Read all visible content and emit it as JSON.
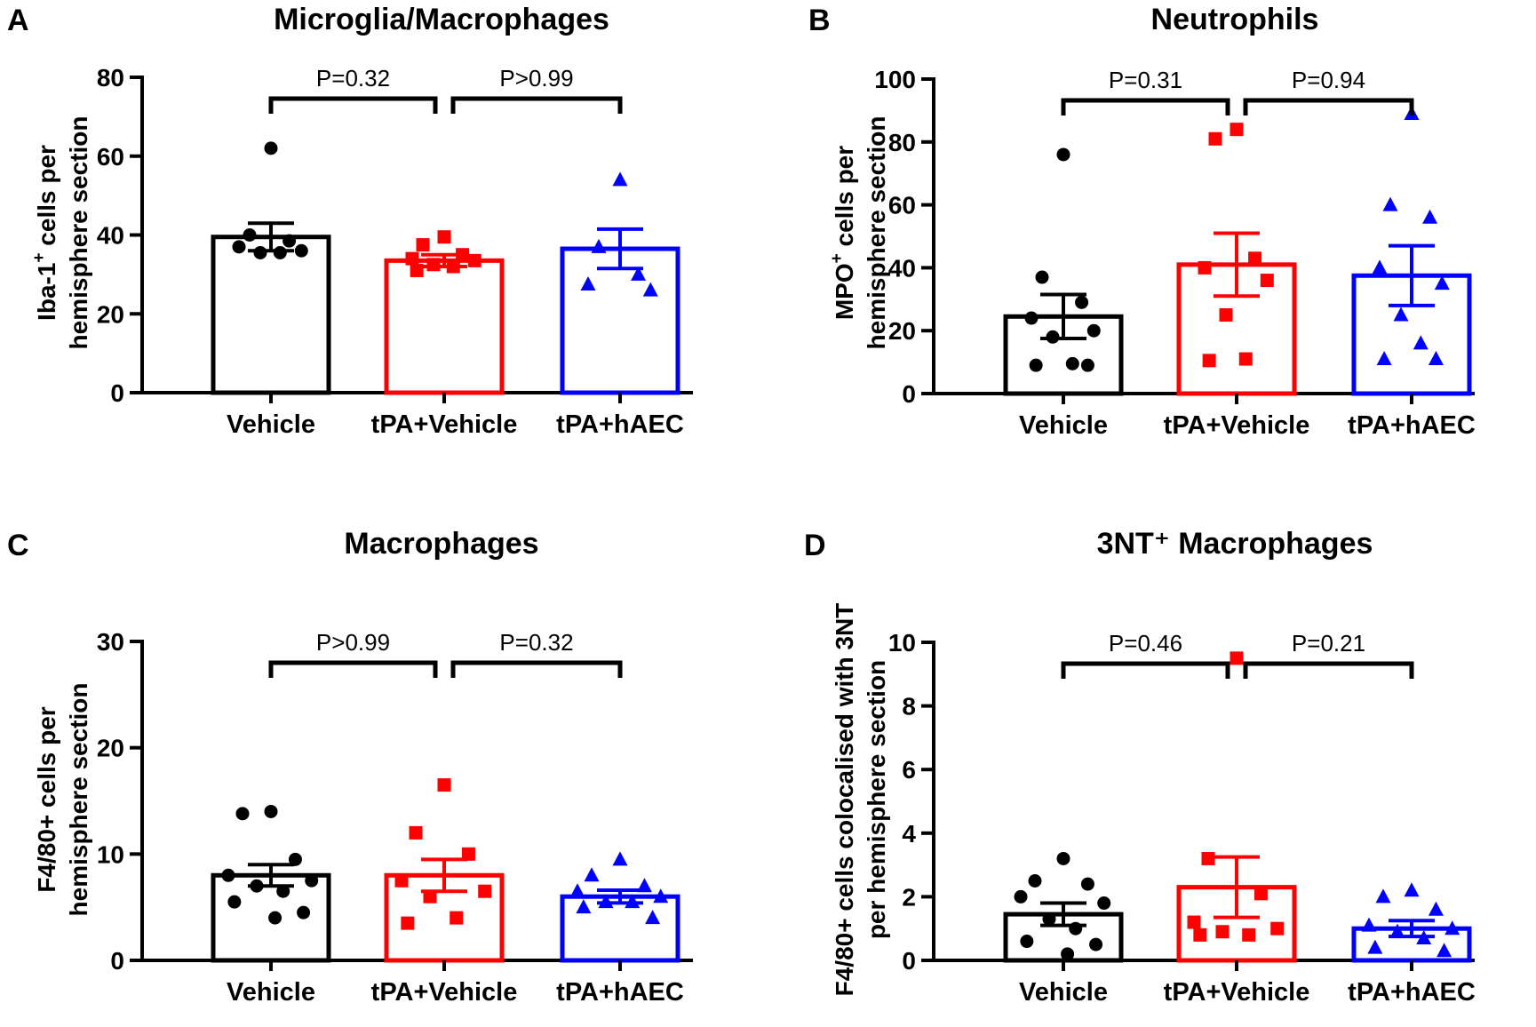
{
  "figure": {
    "colors": {
      "Vehicle": "#000000",
      "tPA+Vehicle": "#ff0000",
      "tPA+hAEC": "#0000ff"
    },
    "markers": {
      "Vehicle": "circle",
      "tPA+Vehicle": "square",
      "tPA+hAEC": "triangle"
    }
  },
  "chart_data": [
    {
      "panel": "A",
      "type": "bar",
      "title": "Microglia/Macrophages",
      "ylabel_lines": [
        [
          {
            "t": "Iba-1"
          },
          {
            "t": "+",
            "sup": true
          },
          {
            "t": " cells per"
          }
        ],
        [
          {
            "t": "hemisphere section"
          }
        ]
      ],
      "categories": [
        "Vehicle",
        "tPA+Vehicle",
        "tPA+hAEC"
      ],
      "values": [
        39.5,
        33.5,
        36.5
      ],
      "sem": [
        3.5,
        1.5,
        5
      ],
      "ylim": [
        0,
        80
      ],
      "yticks": [
        "0",
        "20",
        "40",
        "60",
        "80"
      ],
      "points": [
        [
          62,
          40,
          38.5,
          37,
          36,
          35.5,
          35.5
        ],
        [
          39.5,
          37.5,
          35,
          34,
          33.5,
          32.5,
          32,
          31
        ],
        [
          54,
          37,
          30,
          27.5,
          26
        ]
      ],
      "comparisons": [
        {
          "from": 0,
          "to": 1,
          "label": "P=0.32"
        },
        {
          "from": 1,
          "to": 2,
          "label": "P>0.99"
        }
      ]
    },
    {
      "panel": "B",
      "type": "bar",
      "title": "Neutrophils",
      "ylabel_lines": [
        [
          {
            "t": "MPO"
          },
          {
            "t": "+",
            "sup": true
          },
          {
            "t": " cells per"
          }
        ],
        [
          {
            "t": "hemisphere section"
          }
        ]
      ],
      "categories": [
        "Vehicle",
        "tPA+Vehicle",
        "tPA+hAEC"
      ],
      "values": [
        24.5,
        41,
        37.5
      ],
      "sem": [
        7,
        10,
        9.5
      ],
      "ylim": [
        0,
        100
      ],
      "yticks": [
        "0",
        "20",
        "40",
        "60",
        "80",
        "100"
      ],
      "points": [
        [
          76,
          37,
          29,
          24,
          20,
          18,
          9.5,
          9,
          9
        ],
        [
          84,
          81,
          43,
          40,
          36,
          25,
          11,
          10.5
        ],
        [
          89,
          60,
          56,
          40,
          35,
          25,
          16,
          11,
          11
        ]
      ],
      "comparisons": [
        {
          "from": 0,
          "to": 1,
          "label": "P=0.31"
        },
        {
          "from": 1,
          "to": 2,
          "label": "P=0.94"
        }
      ]
    },
    {
      "panel": "C",
      "type": "bar",
      "title": "Macrophages",
      "ylabel_lines": [
        [
          {
            "t": "F4/80+ cells per"
          }
        ],
        [
          {
            "t": "hemisphere section"
          }
        ]
      ],
      "categories": [
        "Vehicle",
        "tPA+Vehicle",
        "tPA+hAEC"
      ],
      "values": [
        8,
        8,
        6
      ],
      "sem": [
        1,
        1.5,
        0.6
      ],
      "ylim": [
        0,
        30
      ],
      "yticks": [
        "0",
        "10",
        "20",
        "30"
      ],
      "points": [
        [
          14,
          13.8,
          9.5,
          8,
          7.5,
          7,
          6.5,
          5.5,
          4.5,
          4
        ],
        [
          16.5,
          12,
          10,
          7.5,
          6.5,
          6,
          4,
          3.5
        ],
        [
          9.5,
          8,
          7,
          6.5,
          6,
          5.5,
          5.5,
          5,
          4
        ]
      ],
      "comparisons": [
        {
          "from": 0,
          "to": 1,
          "label": "P>0.99"
        },
        {
          "from": 1,
          "to": 2,
          "label": "P=0.32"
        }
      ]
    },
    {
      "panel": "D",
      "type": "bar",
      "title": "3NT⁺ Macrophages",
      "ylabel_lines": [
        [
          {
            "t": "F4/80+ cells colocalised with 3NT"
          }
        ],
        [
          {
            "t": "per hemisphere section"
          }
        ]
      ],
      "categories": [
        "Vehicle",
        "tPA+Vehicle",
        "tPA+hAEC"
      ],
      "values": [
        1.45,
        2.3,
        1
      ],
      "sem": [
        0.35,
        0.95,
        0.25
      ],
      "ylim": [
        0,
        10
      ],
      "yticks": [
        "0",
        "2",
        "4",
        "6",
        "8",
        "10"
      ],
      "points": [
        [
          3.2,
          2.5,
          2.4,
          2,
          1.8,
          1.3,
          1,
          0.6,
          0.5,
          0.2
        ],
        [
          9.5,
          3.2,
          2.1,
          1.2,
          1,
          0.9,
          0.8,
          0.8
        ],
        [
          2.2,
          2,
          1.6,
          1.1,
          1,
          0.9,
          0.7,
          0.4,
          0.3
        ]
      ],
      "comparisons": [
        {
          "from": 0,
          "to": 1,
          "label": "P=0.46"
        },
        {
          "from": 1,
          "to": 2,
          "label": "P=0.21"
        }
      ]
    }
  ]
}
